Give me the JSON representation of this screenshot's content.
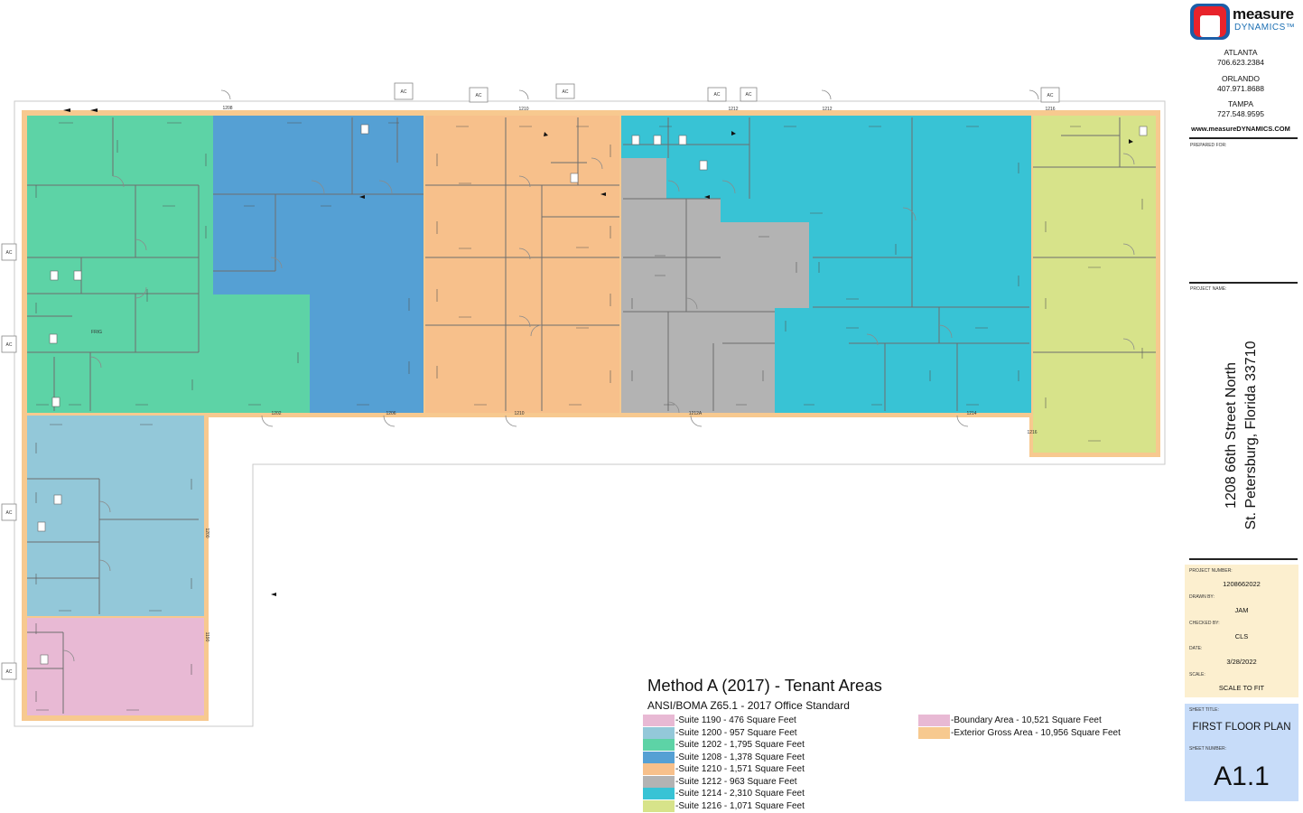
{
  "plan": {
    "ac_label": "AC",
    "suite_tags": [
      "1208",
      "1210",
      "1212",
      "1212",
      "1216",
      "1202",
      "1206",
      "1210",
      "1212A",
      "1214",
      "1216",
      "1200",
      "1190"
    ],
    "frig_label": "FRIG",
    "colors": {
      "suite_1190": "#e8b9d4",
      "suite_1200": "#93c8d9",
      "suite_1202": "#5dd3a6",
      "suite_1208": "#55a0d4",
      "suite_1210": "#f7c08b",
      "suite_1212": "#b3b3b3",
      "suite_1214": "#38c3d5",
      "suite_1216": "#d7e38a",
      "boundary": "#e8b9d4",
      "exterior_gross": "#f7c98f"
    }
  },
  "legend": {
    "title": "Method A (2017) - Tenant Areas",
    "subtitle": "ANSI/BOMA Z65.1 - 2017 Office Standard",
    "items": [
      {
        "label": "-Suite 1190  - 476 Square Feet",
        "color": "#e8b9d4"
      },
      {
        "label": "-Suite 1200  - 957 Square Feet",
        "color": "#93c8d9"
      },
      {
        "label": "-Suite 1202 - 1,795 Square Feet",
        "color": "#5dd3a6"
      },
      {
        "label": "-Suite 1208  - 1,378 Square Feet",
        "color": "#55a0d4"
      },
      {
        "label": "-Suite 1210  - 1,571 Square Feet",
        "color": "#f7c08b"
      },
      {
        "label": "-Suite 1212  - 963 Square Feet",
        "color": "#b3b3b3"
      },
      {
        "label": "-Suite 1214  - 2,310 Square Feet",
        "color": "#38c3d5"
      },
      {
        "label": "-Suite 1216  - 1,071 Square Feet",
        "color": "#d7e38a"
      }
    ],
    "totals": [
      {
        "label": "-Boundary Area  - 10,521 Square Feet",
        "color": "#e8b9d4"
      },
      {
        "label": "-Exterior Gross Area  - 10,956 Square Feet",
        "color": "#f7c98f"
      }
    ]
  },
  "title_block": {
    "brand_main": "measure",
    "brand_sub": "DYNAMICS™",
    "offices": [
      {
        "city": "ATLANTA",
        "phone": "706.623.2384"
      },
      {
        "city": "ORLANDO",
        "phone": "407.971.8688"
      },
      {
        "city": "TAMPA",
        "phone": "727.548.9595"
      }
    ],
    "website": "www.measureDYNAMICS.COM",
    "prepared_for_label": "PREPARED FOR:",
    "project_name_label": "PROJECT NAME:",
    "address_line1": "1208 66th Street North",
    "address_line2": "St. Petersburg, Florida 33710",
    "project_number_label": "PROJECT NUMBER:",
    "project_number": "1208662022",
    "drawn_by_label": "DRAWN BY:",
    "drawn_by": "JAM",
    "checked_by_label": "CHECKED BY:",
    "checked_by": "CLS",
    "date_label": "DATE:",
    "date": "3/28/2022",
    "scale_label": "SCALE:",
    "scale": "SCALE TO FIT",
    "sheet_title_label": "SHEET TITLE:",
    "sheet_title": "FIRST FLOOR PLAN",
    "sheet_number_label": "SHEET NUMBER:",
    "sheet_number": "A1.1"
  }
}
